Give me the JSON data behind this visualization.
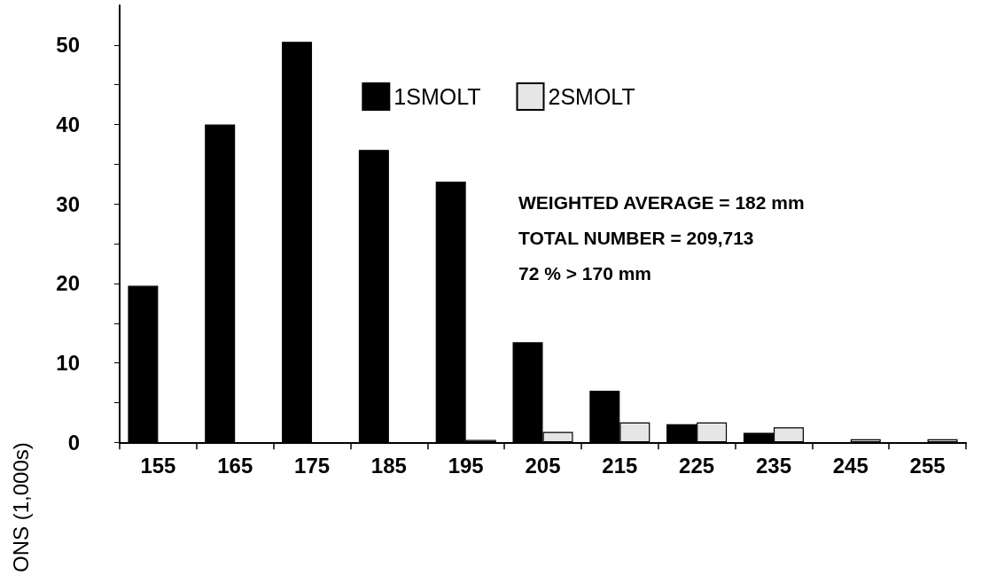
{
  "chart_data": {
    "type": "bar",
    "ylabel": "ONS (1,000s)",
    "categories": [
      "155",
      "165",
      "175",
      "185",
      "195",
      "205",
      "215",
      "225",
      "235",
      "245",
      "255"
    ],
    "series": [
      {
        "name": "1SMOLT",
        "color": "#000000",
        "values": [
          19.7,
          40.0,
          50.4,
          36.8,
          32.8,
          12.6,
          6.5,
          2.3,
          1.2,
          null,
          null
        ]
      },
      {
        "name": "2SMOLT",
        "color": "#e6e6e6",
        "values": [
          null,
          null,
          null,
          null,
          0.3,
          1.3,
          2.5,
          2.5,
          1.9,
          0.4,
          0.4
        ]
      }
    ],
    "ylim": [
      0,
      55
    ],
    "yticks": [
      0,
      {
        "value": 5,
        "label": null
      },
      10,
      {
        "value": 15,
        "label": null
      },
      20,
      {
        "value": 25,
        "label": null
      },
      30,
      {
        "value": 35,
        "label": null
      },
      40,
      {
        "value": 45,
        "label": null
      },
      50
    ],
    "annotations": [
      "WEIGHTED AVERAGE = 182 mm",
      "TOTAL NUMBER = 209,713",
      "72 % > 170 mm"
    ],
    "legend": "top",
    "grid": false
  }
}
